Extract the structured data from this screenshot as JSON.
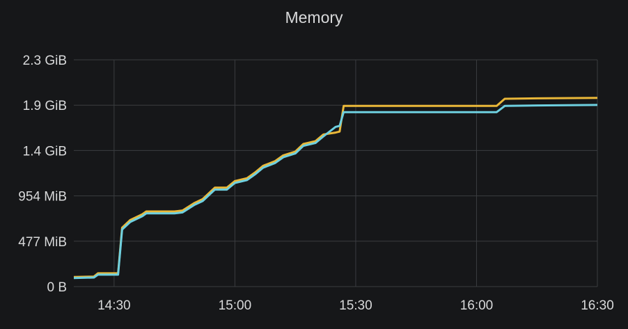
{
  "panel": {
    "title": "Memory"
  },
  "chart_data": {
    "type": "line",
    "title": "Memory",
    "x_unit": "time (HH:MM)",
    "y_unit": "MiB",
    "xlim": [
      "14:20",
      "16:30"
    ],
    "ylim": [
      0,
      2355
    ],
    "x_ticks": [
      "14:30",
      "15:00",
      "15:30",
      "16:00",
      "16:30"
    ],
    "y_ticks": [
      {
        "label": "0 B",
        "value": 0
      },
      {
        "label": "477 MiB",
        "value": 477
      },
      {
        "label": "954 MiB",
        "value": 954
      },
      {
        "label": "1.4 GiB",
        "value": 1431
      },
      {
        "label": "1.9 GiB",
        "value": 1908
      },
      {
        "label": "2.3 GiB",
        "value": 2385
      }
    ],
    "grid": true,
    "series": [
      {
        "color": "#eab839",
        "points": [
          [
            "14:20",
            100
          ],
          [
            "14:25",
            105
          ],
          [
            "14:26",
            140
          ],
          [
            "14:31",
            140
          ],
          [
            "14:32",
            620
          ],
          [
            "14:34",
            700
          ],
          [
            "14:37",
            760
          ],
          [
            "14:38",
            790
          ],
          [
            "14:45",
            790
          ],
          [
            "14:47",
            800
          ],
          [
            "14:50",
            880
          ],
          [
            "14:52",
            920
          ],
          [
            "14:55",
            1040
          ],
          [
            "14:58",
            1040
          ],
          [
            "15:00",
            1110
          ],
          [
            "15:03",
            1140
          ],
          [
            "15:05",
            1200
          ],
          [
            "15:07",
            1270
          ],
          [
            "15:10",
            1320
          ],
          [
            "15:12",
            1380
          ],
          [
            "15:15",
            1420
          ],
          [
            "15:17",
            1500
          ],
          [
            "15:20",
            1530
          ],
          [
            "15:22",
            1600
          ],
          [
            "15:25",
            1620
          ],
          [
            "15:26",
            1630
          ],
          [
            "15:27",
            1900
          ],
          [
            "15:35",
            1900
          ],
          [
            "15:45",
            1900
          ],
          [
            "16:05",
            1900
          ],
          [
            "16:07",
            1975
          ],
          [
            "16:15",
            1980
          ],
          [
            "16:30",
            1985
          ]
        ]
      },
      {
        "color": "#6ed0e0",
        "points": [
          [
            "14:20",
            90
          ],
          [
            "14:25",
            95
          ],
          [
            "14:26",
            125
          ],
          [
            "14:31",
            125
          ],
          [
            "14:32",
            600
          ],
          [
            "14:34",
            680
          ],
          [
            "14:37",
            740
          ],
          [
            "14:38",
            770
          ],
          [
            "14:45",
            770
          ],
          [
            "14:47",
            780
          ],
          [
            "14:50",
            860
          ],
          [
            "14:52",
            900
          ],
          [
            "14:55",
            1020
          ],
          [
            "14:58",
            1020
          ],
          [
            "15:00",
            1090
          ],
          [
            "15:03",
            1120
          ],
          [
            "15:05",
            1180
          ],
          [
            "15:07",
            1250
          ],
          [
            "15:10",
            1300
          ],
          [
            "15:12",
            1360
          ],
          [
            "15:15",
            1400
          ],
          [
            "15:17",
            1480
          ],
          [
            "15:20",
            1510
          ],
          [
            "15:22",
            1580
          ],
          [
            "15:25",
            1680
          ],
          [
            "15:26",
            1690
          ],
          [
            "15:27",
            1835
          ],
          [
            "15:35",
            1835
          ],
          [
            "15:45",
            1835
          ],
          [
            "16:05",
            1835
          ],
          [
            "16:07",
            1900
          ],
          [
            "16:15",
            1905
          ],
          [
            "16:30",
            1910
          ]
        ]
      }
    ]
  }
}
